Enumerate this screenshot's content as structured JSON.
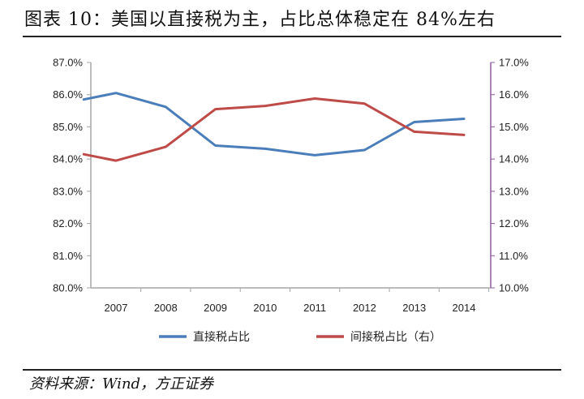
{
  "title": "图表 10：美国以直接税为主，占比总体稳定在 84%左右",
  "source": "资料来源：Wind，方正证券",
  "colors": {
    "direct_tax": "#4A7EBB",
    "indirect_tax": "#BE4B48",
    "left_axis": "#A6A6A6",
    "right_axis": "#8E5C9C"
  },
  "chart_data": {
    "type": "line",
    "title": "",
    "xlabel": "",
    "ylabel": "",
    "categories": [
      "2007",
      "2008",
      "2009",
      "2010",
      "2011",
      "2012",
      "2013",
      "2014"
    ],
    "x_start": "2007",
    "x_end": "2014",
    "ylim": [
      80.0,
      87.0
    ],
    "ylim_right": [
      10.0,
      17.0
    ],
    "y_ticks_left": [
      "87.0%",
      "86.0%",
      "85.0%",
      "84.0%",
      "83.0%",
      "82.0%",
      "81.0%",
      "80.0%"
    ],
    "y_ticks_right": [
      "17.0%",
      "16.0%",
      "15.0%",
      "14.0%",
      "13.0%",
      "12.0%",
      "11.0%",
      "10.0%"
    ],
    "grid": false,
    "legend": "bottom",
    "series": [
      {
        "name": "直接税占比",
        "axis": "left",
        "x": [
          "2006.35",
          "2007",
          "2008",
          "2009",
          "2010",
          "2011",
          "2012",
          "2013",
          "2014"
        ],
        "values": [
          85.85,
          86.05,
          85.62,
          84.42,
          84.32,
          84.12,
          84.28,
          85.15,
          85.25
        ]
      },
      {
        "name": "间接税占比（右）",
        "axis": "right",
        "x": [
          "2006.35",
          "2007",
          "2008",
          "2009",
          "2010",
          "2011",
          "2012",
          "2013",
          "2014"
        ],
        "values": [
          14.15,
          13.95,
          14.38,
          15.55,
          15.65,
          15.88,
          15.72,
          14.85,
          14.75
        ]
      }
    ]
  }
}
